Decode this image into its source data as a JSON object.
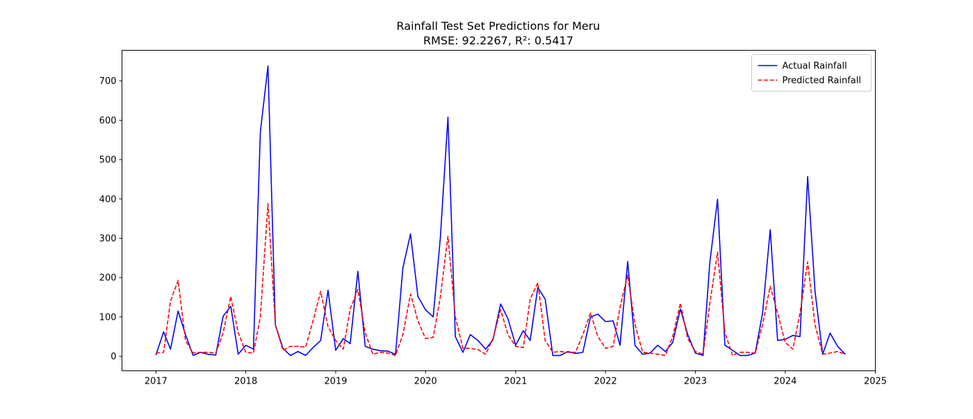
{
  "chart_data": {
    "type": "line",
    "title": "Rainfall Test Set Predictions for Meru",
    "subtitle": "RMSE: 92.2267, R²: 0.5417",
    "xlabel": "",
    "ylabel": "",
    "x_ticks": [
      "2017",
      "2018",
      "2019",
      "2020",
      "2021",
      "2022",
      "2023",
      "2024",
      "2025"
    ],
    "y_ticks": [
      "0",
      "100",
      "200",
      "300",
      "400",
      "500",
      "600",
      "700"
    ],
    "xlim": [
      "2016-08-16",
      "2025-01-01"
    ],
    "ylim": [
      -37,
      778
    ],
    "grid": false,
    "legend_position": "top-right",
    "x": [
      "2017-01",
      "2017-02",
      "2017-03",
      "2017-04",
      "2017-05",
      "2017-06",
      "2017-07",
      "2017-08",
      "2017-09",
      "2017-10",
      "2017-11",
      "2017-12",
      "2018-01",
      "2018-02",
      "2018-03",
      "2018-04",
      "2018-05",
      "2018-06",
      "2018-07",
      "2018-08",
      "2018-09",
      "2018-10",
      "2018-11",
      "2018-12",
      "2019-01",
      "2019-02",
      "2019-03",
      "2019-04",
      "2019-05",
      "2019-06",
      "2019-07",
      "2019-08",
      "2019-09",
      "2019-10",
      "2019-11",
      "2019-12",
      "2020-01",
      "2020-02",
      "2020-03",
      "2020-04",
      "2020-05",
      "2020-06",
      "2020-07",
      "2020-08",
      "2020-09",
      "2020-10",
      "2020-11",
      "2020-12",
      "2021-01",
      "2021-02",
      "2021-03",
      "2021-04",
      "2021-05",
      "2021-06",
      "2021-07",
      "2021-08",
      "2021-09",
      "2021-10",
      "2021-11",
      "2021-12",
      "2022-01",
      "2022-02",
      "2022-03",
      "2022-04",
      "2022-05",
      "2022-06",
      "2022-07",
      "2022-08",
      "2022-09",
      "2022-10",
      "2022-11",
      "2022-12",
      "2023-01",
      "2023-02",
      "2023-03",
      "2023-04",
      "2023-05",
      "2023-06",
      "2023-07",
      "2023-08",
      "2023-09",
      "2023-10",
      "2023-11",
      "2023-12",
      "2024-01",
      "2024-02",
      "2024-03",
      "2024-04",
      "2024-05",
      "2024-06",
      "2024-07",
      "2024-08",
      "2024-09"
    ],
    "series": [
      {
        "name": "Actual Rainfall",
        "color": "#0000ff",
        "style": "solid",
        "values": [
          3,
          62,
          18,
          115,
          55,
          2,
          10,
          5,
          3,
          102,
          127,
          5,
          28,
          18,
          570,
          738,
          80,
          20,
          2,
          12,
          2,
          22,
          40,
          168,
          15,
          45,
          32,
          216,
          25,
          18,
          14,
          13,
          5,
          225,
          311,
          152,
          118,
          100,
          300,
          608,
          50,
          10,
          55,
          40,
          18,
          42,
          133,
          95,
          28,
          65,
          40,
          175,
          145,
          2,
          2,
          12,
          7,
          10,
          100,
          107,
          88,
          90,
          28,
          241,
          27,
          5,
          8,
          28,
          12,
          35,
          120,
          55,
          8,
          2,
          240,
          399,
          28,
          15,
          2,
          2,
          8,
          110,
          322,
          40,
          43,
          53,
          50,
          457,
          165,
          5,
          59,
          25,
          5
        ]
      },
      {
        "name": "Predicted Rainfall",
        "color": "#ff0000",
        "style": "dashed",
        "values": [
          8,
          10,
          140,
          193,
          40,
          8,
          10,
          10,
          8,
          60,
          152,
          60,
          10,
          8,
          100,
          388,
          80,
          15,
          25,
          25,
          23,
          90,
          165,
          75,
          40,
          18,
          120,
          170,
          60,
          5,
          10,
          8,
          2,
          55,
          158,
          90,
          45,
          48,
          150,
          305,
          100,
          20,
          20,
          17,
          5,
          45,
          118,
          55,
          25,
          22,
          145,
          187,
          40,
          10,
          12,
          10,
          10,
          55,
          110,
          50,
          20,
          25,
          125,
          206,
          80,
          10,
          8,
          5,
          2,
          50,
          135,
          45,
          12,
          5,
          135,
          265,
          60,
          2,
          10,
          10,
          8,
          80,
          178,
          110,
          35,
          18,
          110,
          240,
          80,
          5,
          8,
          12,
          5
        ]
      }
    ]
  }
}
